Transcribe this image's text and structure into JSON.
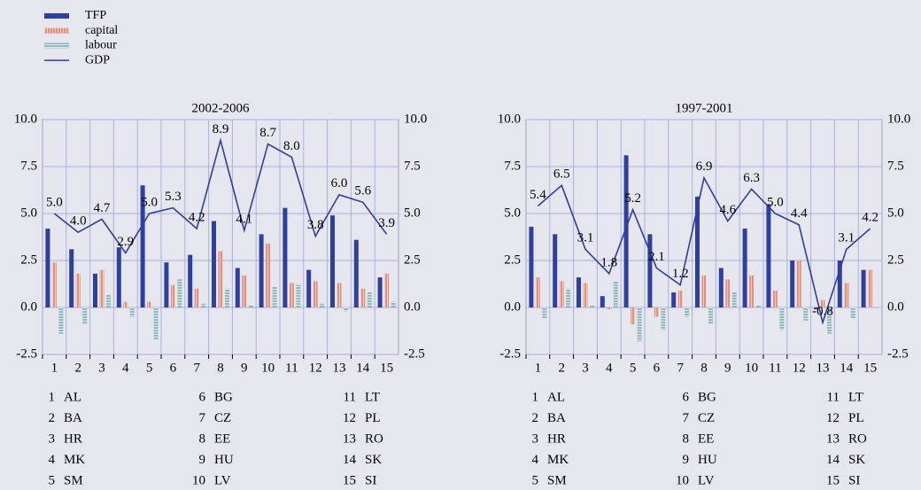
{
  "chart_data": [
    {
      "type": "bar",
      "title": "2002-2006",
      "categories": [
        "1",
        "2",
        "3",
        "4",
        "5",
        "6",
        "7",
        "8",
        "9",
        "10",
        "11",
        "12",
        "13",
        "14",
        "15"
      ],
      "countries": [
        "AL",
        "BA",
        "HR",
        "MK",
        "SM",
        "BG",
        "CZ",
        "EE",
        "HU",
        "LV",
        "LT",
        "PL",
        "RO",
        "SK",
        "SI"
      ],
      "ylim": [
        -2.5,
        10
      ],
      "grid": true,
      "yticks": [
        {
          "value": -2.5,
          "label": "-2.5"
        },
        {
          "value": 0,
          "label": "0.0"
        },
        {
          "value": 2.5,
          "label": "2.5"
        },
        {
          "value": 5,
          "label": "5.0"
        },
        {
          "value": 7.5,
          "label": "7.5"
        },
        {
          "value": 10,
          "label": "10.0"
        }
      ],
      "series": [
        {
          "name": "TFP",
          "color": "#2f3f9e",
          "pattern": "solid",
          "values": [
            4.2,
            3.1,
            1.8,
            3.2,
            6.5,
            2.4,
            2.8,
            4.6,
            2.1,
            3.9,
            5.3,
            2.0,
            4.9,
            3.6,
            1.6
          ]
        },
        {
          "name": "capital",
          "color": "#e0907c",
          "pattern": "vertical",
          "values": [
            2.4,
            1.8,
            2.0,
            0.3,
            0.3,
            1.2,
            1.0,
            3.0,
            1.7,
            3.4,
            1.3,
            1.4,
            1.3,
            1.0,
            1.8
          ]
        },
        {
          "name": "labour",
          "color": "#8fb8bc",
          "pattern": "horizontal",
          "values": [
            -1.4,
            -0.9,
            0.7,
            -0.5,
            -1.7,
            1.5,
            0.2,
            1.0,
            0.1,
            1.1,
            1.2,
            0.2,
            -0.2,
            0.8,
            0.3
          ]
        },
        {
          "name": "GDP",
          "color": "#2f3f9e",
          "series_type": "line",
          "values": [
            5.0,
            4.0,
            4.7,
            2.9,
            5.0,
            5.3,
            4.2,
            8.9,
            4.1,
            8.7,
            8.0,
            3.8,
            6.0,
            5.6,
            3.9
          ],
          "value_labels": [
            "5.0",
            "4.0",
            "4.7",
            "2.9",
            "5.0",
            "5.3",
            "4.2",
            "8.9",
            "4.1",
            "8.7",
            "8.0",
            "3.8",
            "6.0",
            "5.6",
            "3.9"
          ]
        }
      ]
    },
    {
      "type": "bar",
      "title": "1997-2001",
      "categories": [
        "1",
        "2",
        "3",
        "4",
        "5",
        "6",
        "7",
        "8",
        "9",
        "10",
        "11",
        "12",
        "13",
        "14",
        "15"
      ],
      "countries": [
        "AL",
        "BA",
        "HR",
        "MK",
        "SM",
        "BG",
        "CZ",
        "EE",
        "HU",
        "LV",
        "LT",
        "PL",
        "RO",
        "SK",
        "SI"
      ],
      "ylim": [
        -2.5,
        10
      ],
      "grid": true,
      "yticks": [
        {
          "value": -2.5,
          "label": "-2.5"
        },
        {
          "value": 0,
          "label": "0.0"
        },
        {
          "value": 2.5,
          "label": "2.5"
        },
        {
          "value": 5,
          "label": "5.0"
        },
        {
          "value": 7.5,
          "label": "7.5"
        },
        {
          "value": 10,
          "label": "10.0"
        }
      ],
      "series": [
        {
          "name": "TFP",
          "color": "#2f3f9e",
          "pattern": "solid",
          "values": [
            4.3,
            3.9,
            1.6,
            0.6,
            8.1,
            3.9,
            0.8,
            5.9,
            2.1,
            4.2,
            5.5,
            2.5,
            -0.1,
            2.5,
            2.0
          ]
        },
        {
          "name": "capital",
          "color": "#e0907c",
          "pattern": "vertical",
          "values": [
            1.6,
            1.4,
            1.3,
            -0.1,
            -0.9,
            -0.5,
            0.9,
            1.7,
            1.5,
            1.7,
            0.9,
            2.5,
            0.4,
            1.3,
            2.0
          ]
        },
        {
          "name": "labour",
          "color": "#8fb8bc",
          "pattern": "horizontal",
          "values": [
            -0.6,
            1.0,
            0.1,
            1.4,
            -1.8,
            -1.2,
            -0.5,
            -0.9,
            0.8,
            0.1,
            -1.2,
            -0.7,
            -1.4,
            -0.6,
            0.0
          ]
        },
        {
          "name": "GDP",
          "color": "#2f3f9e",
          "series_type": "line",
          "values": [
            5.4,
            6.5,
            3.1,
            1.8,
            5.2,
            2.1,
            1.2,
            6.9,
            4.6,
            6.3,
            5.0,
            4.4,
            -0.8,
            3.1,
            4.2
          ],
          "value_labels": [
            "5.4",
            "6.5",
            "3.1",
            "1.8",
            "5.2",
            "2.1",
            "1.2",
            "6.9",
            "4.6",
            "6.3",
            "5.0",
            "4.4",
            "-0.8",
            "3.1",
            "4.2"
          ]
        }
      ]
    }
  ]
}
